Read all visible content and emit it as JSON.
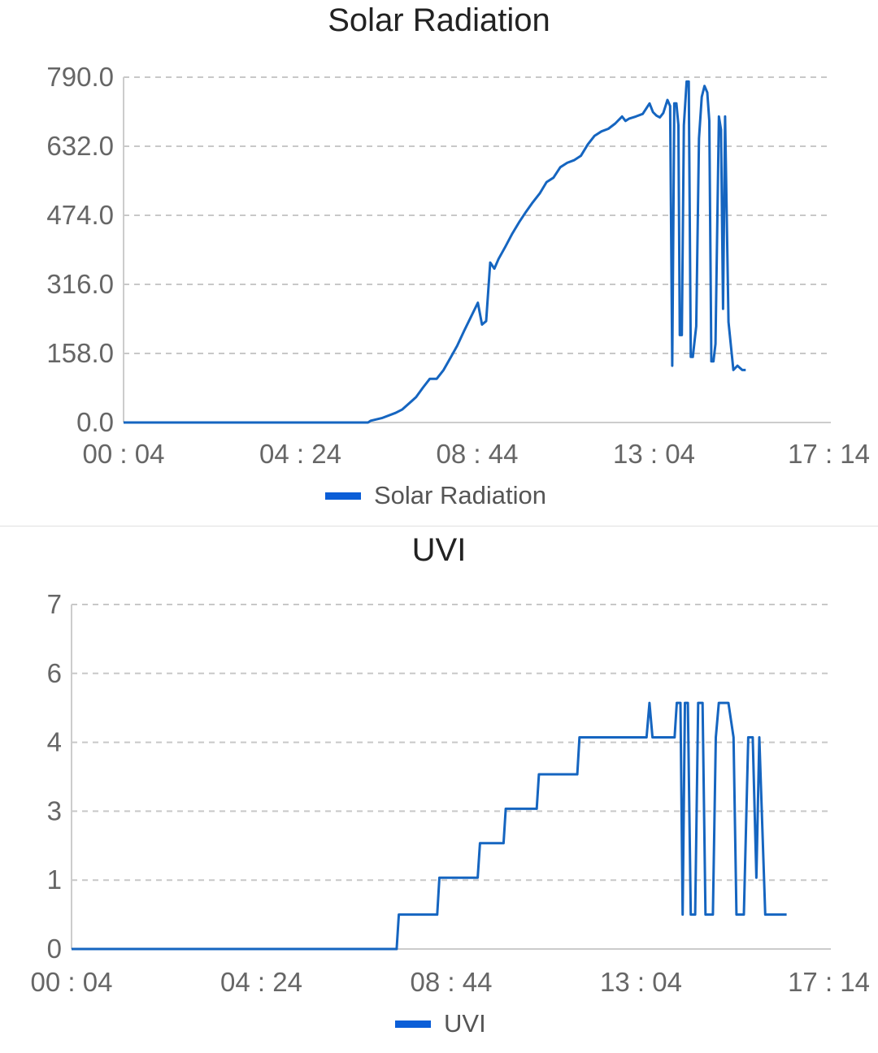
{
  "chart_data": [
    {
      "type": "line",
      "title": "Solar Radiation",
      "xlabel": "",
      "ylabel": "",
      "x_ticks": [
        "00 : 04",
        "04 : 24",
        "08 : 44",
        "13 : 04",
        "17 : 14"
      ],
      "y_ticks": [
        "790.0",
        "632.0",
        "474.0",
        "316.0",
        "158.0",
        "0.0"
      ],
      "ylim": [
        0,
        790
      ],
      "xlim": [
        "00:04",
        "17:14"
      ],
      "grid": true,
      "legend": "bottom",
      "color": "#1565c0",
      "legend_color": "#0b5ed7",
      "series": [
        {
          "name": "Solar Radiation",
          "points": [
            [
              "00:04",
              0
            ],
            [
              "06:00",
              0
            ],
            [
              "06:04",
              4
            ],
            [
              "06:20",
              10
            ],
            [
              "06:40",
              22
            ],
            [
              "06:50",
              30
            ],
            [
              "07:10",
              58
            ],
            [
              "07:20",
              80
            ],
            [
              "07:30",
              100
            ],
            [
              "07:40",
              100
            ],
            [
              "07:50",
              120
            ],
            [
              "08:00",
              148
            ],
            [
              "08:10",
              176
            ],
            [
              "08:20",
              210
            ],
            [
              "08:30",
              242
            ],
            [
              "08:40",
              274
            ],
            [
              "08:46",
              224
            ],
            [
              "08:52",
              232
            ],
            [
              "08:58",
              366
            ],
            [
              "09:04",
              352
            ],
            [
              "09:10",
              374
            ],
            [
              "09:20",
              402
            ],
            [
              "09:30",
              432
            ],
            [
              "09:40",
              458
            ],
            [
              "09:50",
              482
            ],
            [
              "10:00",
              504
            ],
            [
              "10:10",
              524
            ],
            [
              "10:20",
              550
            ],
            [
              "10:30",
              560
            ],
            [
              "10:40",
              584
            ],
            [
              "10:50",
              594
            ],
            [
              "11:00",
              600
            ],
            [
              "11:10",
              610
            ],
            [
              "11:20",
              636
            ],
            [
              "11:30",
              656
            ],
            [
              "11:40",
              666
            ],
            [
              "11:50",
              672
            ],
            [
              "12:00",
              684
            ],
            [
              "12:10",
              700
            ],
            [
              "12:15",
              690
            ],
            [
              "12:20",
              695
            ],
            [
              "12:30",
              700
            ],
            [
              "12:40",
              706
            ],
            [
              "12:50",
              730
            ],
            [
              "12:55",
              710
            ],
            [
              "13:00",
              702
            ],
            [
              "13:05",
              698
            ],
            [
              "13:10",
              708
            ],
            [
              "13:16",
              738
            ],
            [
              "13:20",
              724
            ],
            [
              "13:23",
              130
            ],
            [
              "13:26",
              730
            ],
            [
              "13:29",
              730
            ],
            [
              "13:32",
              680
            ],
            [
              "13:34",
              200
            ],
            [
              "13:37",
              200
            ],
            [
              "13:40",
              680
            ],
            [
              "13:44",
              780
            ],
            [
              "13:47",
              780
            ],
            [
              "13:50",
              150
            ],
            [
              "13:53",
              150
            ],
            [
              "13:58",
              220
            ],
            [
              "14:02",
              650
            ],
            [
              "14:06",
              745
            ],
            [
              "14:10",
              770
            ],
            [
              "14:14",
              755
            ],
            [
              "14:17",
              690
            ],
            [
              "14:20",
              140
            ],
            [
              "14:23",
              140
            ],
            [
              "14:26",
              180
            ],
            [
              "14:31",
              700
            ],
            [
              "14:34",
              670
            ],
            [
              "14:37",
              260
            ],
            [
              "14:40",
              700
            ],
            [
              "14:45",
              230
            ],
            [
              "14:52",
              120
            ],
            [
              "14:58",
              130
            ],
            [
              "15:05",
              120
            ],
            [
              "15:10",
              120
            ]
          ]
        }
      ]
    },
    {
      "type": "line",
      "title": "UVI",
      "xlabel": "",
      "ylabel": "",
      "x_ticks": [
        "00 : 04",
        "04 : 24",
        "08 : 44",
        "13 : 04",
        "17 : 14"
      ],
      "y_ticks": [
        "7",
        "6",
        "4",
        "3",
        "1",
        "0"
      ],
      "ylim": [
        0,
        7
      ],
      "xlim": [
        "00:04",
        "17:14"
      ],
      "grid": true,
      "legend": "bottom",
      "color": "#1565c0",
      "legend_color": "#0b5ed7",
      "series": [
        {
          "name": "UVI",
          "points": [
            [
              "00:04",
              0
            ],
            [
              "07:25",
              0
            ],
            [
              "07:28",
              0.7
            ],
            [
              "08:20",
              0.7
            ],
            [
              "08:23",
              1.45
            ],
            [
              "09:15",
              1.45
            ],
            [
              "09:18",
              2.15
            ],
            [
              "09:50",
              2.15
            ],
            [
              "09:53",
              2.85
            ],
            [
              "10:35",
              2.85
            ],
            [
              "10:38",
              3.55
            ],
            [
              "11:30",
              3.55
            ],
            [
              "11:33",
              4.3
            ],
            [
              "13:04",
              4.3
            ],
            [
              "13:08",
              5.0
            ],
            [
              "13:12",
              4.3
            ],
            [
              "13:42",
              4.3
            ],
            [
              "13:45",
              5.0
            ],
            [
              "13:50",
              5.0
            ],
            [
              "13:53",
              0.7
            ],
            [
              "13:56",
              5.0
            ],
            [
              "14:00",
              5.0
            ],
            [
              "14:04",
              0.7
            ],
            [
              "14:10",
              0.7
            ],
            [
              "14:14",
              5.0
            ],
            [
              "14:20",
              5.0
            ],
            [
              "14:24",
              0.7
            ],
            [
              "14:34",
              0.7
            ],
            [
              "14:38",
              4.3
            ],
            [
              "14:42",
              5.0
            ],
            [
              "14:55",
              5.0
            ],
            [
              "15:02",
              4.3
            ],
            [
              "15:06",
              0.7
            ],
            [
              "15:16",
              0.7
            ],
            [
              "15:22",
              4.3
            ],
            [
              "15:28",
              4.3
            ],
            [
              "15:33",
              1.45
            ],
            [
              "15:37",
              4.3
            ],
            [
              "15:45",
              0.7
            ],
            [
              "16:14",
              0.7
            ]
          ]
        }
      ]
    }
  ]
}
